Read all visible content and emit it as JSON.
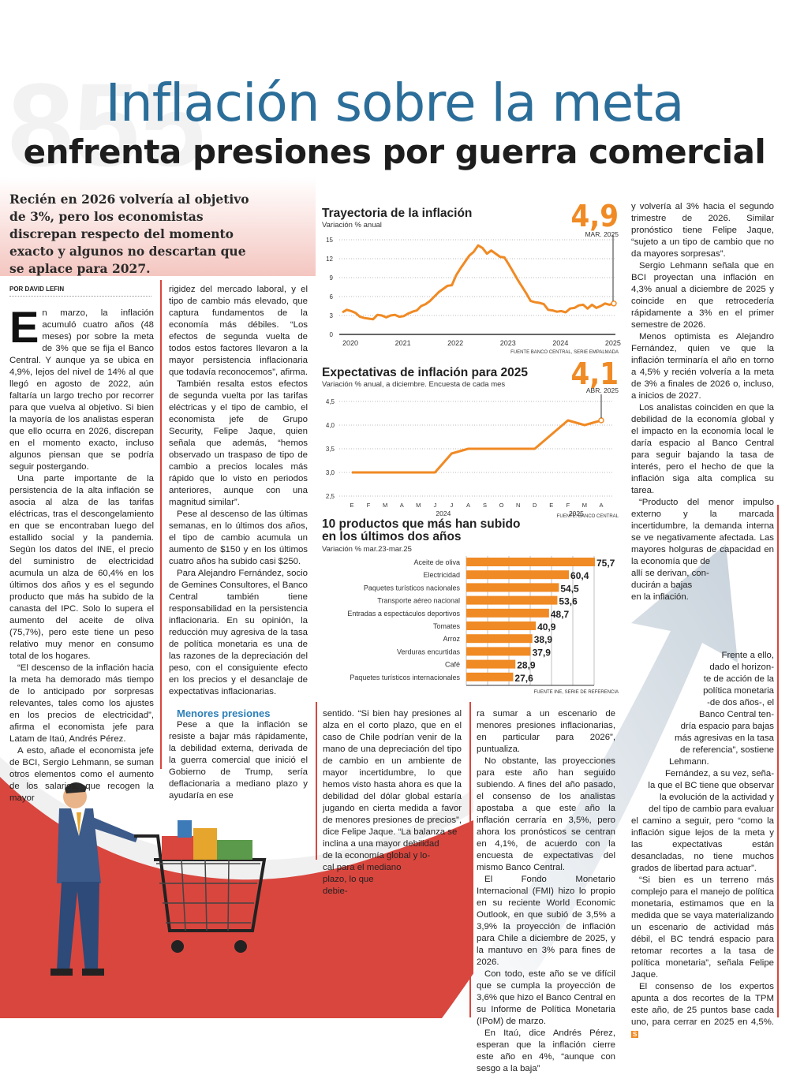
{
  "header": {
    "title": "Inflación sobre la meta",
    "subtitle": "enfrenta presiones por guerra comercial"
  },
  "lede": "Recién en 2026 volvería al objetivo de 3%, pero los economistas discrepan respecto del momento exacto y algunos no descartan que se aplace para 2027.",
  "byline": "POR DAVID LEFIN",
  "col1": {
    "dropcap": "E",
    "paragraphs": [
      "n marzo, la inflación acumuló cuatro años (48 meses) por sobre la meta de 3% que se fija el Banco Central. Y aunque ya se ubica en 4,9%, lejos del nivel de 14% al que llegó en agosto de 2022, aún faltaría un largo trecho por recorrer para que vuelva al objetivo. Si bien la mayoría de los analistas esperan que ello ocurra en 2026, discrepan en el momento exacto, incluso algunos piensan que se podría seguir postergando.",
      "Una parte importante de la persistencia de la alta inflación se asocia al alza de las tarifas eléctricas, tras el descongelamiento en que se encontraban luego del estallido social y la pandemia. Según los datos del INE, el precio del suministro de electricidad acumula un alza de 60,4% en los últimos dos años y es el segundo producto que más ha subido de la canasta del IPC. Solo lo supera el aumento del aceite de oliva (75,7%), pero este tiene un peso relativo muy menor en consumo total de los hogares.",
      "“El descenso de la inflación hacia la meta ha demorado más tiempo de lo anticipado por sorpresas relevantes, tales como los ajustes en los precios de electricidad”, afirma el economista jefe para Latam de Itaú, Andrés Pérez.",
      "A esto, añade el economista jefe de BCI, Sergio Lehmann, se suman otros elementos como el aumento de los salarios, que recogen la mayor"
    ]
  },
  "col2": {
    "paragraphs": [
      "rigidez del mercado laboral, y el tipo de cambio más elevado, que captura fundamentos de la economía más débiles. “Los efectos de segunda vuelta de todos estos factores llevaron a la mayor persistencia inflacionaria que todavía reconocemos”, afirma.",
      "También resalta estos efectos de segunda vuelta por las tarifas eléctricas y el tipo de cambio, el economista jefe de Grupo Security, Felipe Jaque, quien señala que además, “hemos observado un traspaso de tipo de cambio a precios locales más rápido que lo visto en periodos anteriores, aunque con una magnitud similar”.",
      "Pese al descenso de las últimas semanas, en lo últimos dos años, el tipo de cambio acumula un aumento de $150 y en los últimos cuatro años ha subido casi $250.",
      "Para Alejandro Fernández, socio de Gemines Consultores, el Banco Central también tiene responsabilidad en la persistencia inflacionaria. En su opinión, la reducción muy agresiva de la tasa de política monetaria es una de las razones de la depreciación del peso, con el consiguiente efecto en los precios y el desanclaje de expectativas inflacionarias."
    ],
    "subheading": "Menores presiones",
    "after": "Pese a que la inflación se resiste a bajar más rápidamente, la debilidad externa, derivada de la guerra comercial que inició el Gobierno de Trump, sería deflacionaria a mediano plazo y ayudaría en ese"
  },
  "col3": {
    "text": "sentido. “Si bien hay presiones al alza en el corto plazo, que en el caso de Chile podrían venir de la mano de una depreciación del tipo de cambio en un ambiente de mayor incertidumbre, lo que hemos visto hasta ahora es que la debilidad del dólar global estaría jugando en cierta medida a favor de menores presiones de precios”, dice Felipe Jaque. “La balanza se",
    "tail": [
      "inclina a una mayor debilidad",
      "de la economía global y lo-",
      "cal para el mediano",
      "plazo, lo que",
      "debie-"
    ]
  },
  "col4": {
    "paragraphs": [
      "ra sumar a un escenario de menores presiones inflacionarias, en particular para 2026”, puntualiza.",
      "No obstante, las proyecciones para este año han seguido subiendo. A fines del año pasado, el consenso de los analistas apostaba a que este año la inflación cerraría en 3,5%, pero ahora los pronósticos se centran en 4,1%, de acuerdo con la encuesta de expectativas del mismo Banco Central.",
      "El Fondo Monetario Internacional (FMI) hizo lo propio en su reciente World Economic Outlook, en que subió de 3,5% a 3,9% la proyección de inflación para Chile a diciembre de 2025, y la mantuvo en 3% para fines de 2026.",
      "Con todo, este año se ve difícil que se cumpla la proyección de 3,6% que hizo el Banco Central en su Informe de Política Monetaria (IPoM) de marzo.",
      "En Itaú, dice Andrés Pérez, esperan que la inflación cierre este año en 4%, “aunque con sesgo a la baja”"
    ]
  },
  "col5": {
    "paragraphs": [
      "y volvería al 3% hacia el segundo trimestre de 2026. Similar pronóstico tiene Felipe Jaque, “sujeto a un tipo de cambio que no da mayores sorpresas”.",
      "Sergio Lehmann señala que en BCI proyectan una inflación en 4,3% anual a diciembre de 2025 y coincide en que retrocedería rápidamente a 3% en el primer semestre de 2026.",
      "Menos optimista es Alejandro Fernández, quien ve que la inflación terminaría el año en torno a 4,5% y recién volvería a la meta de 3% a finales de 2026 o, incluso, a inicios de 2027.",
      "Los analistas coinciden en que la debilidad de la economía global y el impacto en la economía local le daría espacio al Banco Central para seguir bajando la tasa de interés, pero el hecho de que la inflación siga alta complica su tarea.",
      "“Producto del menor impulso externo y la marcada incertidumbre, la demanda interna se ve negativamente afectada. Las mayores holguras de capacidad en la economía que de"
    ],
    "tail": [
      "allí se derivan, con-",
      "ducirán a bajas",
      "en la inflación."
    ]
  },
  "col6": {
    "lines": [
      "Frente a ello,",
      "dado el horizon-",
      "te de acción de la",
      "política monetaria",
      "-de dos años-, el",
      "Banco Central ten-",
      "dría espacio para bajas",
      "más agresivas en la tasa",
      "de referencia”, sostiene",
      "Lehmann.",
      "Fernández, a su vez, seña-",
      "la que el BC tiene que observar",
      "la evolución de la actividad y",
      "del tipo de cambio para evaluar"
    ],
    "paragraphs": [
      "el camino a seguir, pero “como la inflación sigue lejos de la meta y las expectativas están desancladas, no tiene muchos grados de libertad para actuar”.",
      "“Si bien es un terreno más complejo para el manejo de política monetaria, estimamos que en la medida que se vaya materializando un escenario de actividad más débil, el BC tendrá espacio para retomar recortes a la tasa de política monetaria”, señala Felipe Jaque.",
      "El consenso de los expertos apunta a dos recortes de la TPM este año, de 25 puntos base cada uno, para cerrar en 2025 en 4,5%."
    ],
    "end_mark": "S"
  },
  "colors": {
    "orange": "#f08a24",
    "title_blue": "#2c6e9a",
    "red": "#d9463e"
  },
  "chart_data": [
    {
      "type": "line",
      "title": "Trayectoria de la inflación",
      "subtitle": "Variación % anual",
      "highlight": "4,9",
      "highlight_label": "MAR. 2025",
      "source": "FUENTE BANCO CENTRAL, SERIE EMPALMADA",
      "ylim": [
        0,
        15
      ],
      "yticks": [
        "0",
        "3",
        "6",
        "9",
        "12",
        "15"
      ],
      "xlabels": [
        "2020",
        "2021",
        "2022",
        "2023",
        "2024",
        "2025"
      ],
      "start": "2020-01",
      "frequency": "monthly",
      "values": [
        3.5,
        3.9,
        3.7,
        3.4,
        2.8,
        2.6,
        2.5,
        2.4,
        3.1,
        3.0,
        2.7,
        3.0,
        3.1,
        2.8,
        2.9,
        3.3,
        3.6,
        3.8,
        4.5,
        4.8,
        5.3,
        6.0,
        6.7,
        7.2,
        7.7,
        7.8,
        9.4,
        10.5,
        11.5,
        12.5,
        13.1,
        14.1,
        13.7,
        12.8,
        13.3,
        12.8,
        12.3,
        12.2,
        11.1,
        9.9,
        8.7,
        7.6,
        6.5,
        5.3,
        5.1,
        5.0,
        4.8,
        3.9,
        3.8,
        3.6,
        3.7,
        3.5,
        4.1,
        4.2,
        4.6,
        4.7,
        4.1,
        4.7,
        4.2,
        4.5,
        4.9,
        4.7,
        4.9
      ]
    },
    {
      "type": "line",
      "title": "Expectativas de inflación para 2025",
      "subtitle": "Variación % anual, a diciembre. Encuesta de cada mes",
      "highlight": "4,1",
      "highlight_label": "ABR. 2025",
      "source": "FUENTE: BANCO CENTRAL",
      "ylim": [
        2.5,
        4.5
      ],
      "yticks": [
        "2,5",
        "3,0",
        "3,5",
        "4,0",
        "4,5"
      ],
      "months": [
        "E",
        "F",
        "M",
        "A",
        "M",
        "J",
        "J",
        "A",
        "S",
        "O",
        "N",
        "D",
        "E",
        "F",
        "M",
        "A"
      ],
      "years": [
        "2024",
        "2025"
      ],
      "values": [
        3.0,
        3.0,
        3.0,
        3.0,
        3.0,
        3.0,
        3.4,
        3.5,
        3.5,
        3.5,
        3.5,
        3.5,
        3.8,
        4.1,
        4.0,
        4.1
      ]
    },
    {
      "type": "bar",
      "orientation": "horizontal",
      "title": "10 productos que más han subido en los últimos dos años",
      "subtitle": "Variación % mar.23-mar.25",
      "source": "FUENTE INE, SERIE DE REFERENCIA",
      "categories": [
        "Aceite de oliva",
        "Electricidad",
        "Paquetes turísticos nacionales",
        "Transporte aéreo nacional",
        "Entradas a espectáculos deportivos",
        "Tomates",
        "Arroz",
        "Verduras encurtidas",
        "Café",
        "Paquetes turísticos internacionales"
      ],
      "values": [
        75.7,
        60.4,
        54.5,
        53.6,
        48.7,
        40.9,
        38.9,
        37.9,
        28.9,
        27.6
      ],
      "labels": [
        "75,7",
        "60,4",
        "54,5",
        "53,6",
        "48,7",
        "40,9",
        "38,9",
        "37,9",
        "28,9",
        "27,6"
      ]
    }
  ]
}
